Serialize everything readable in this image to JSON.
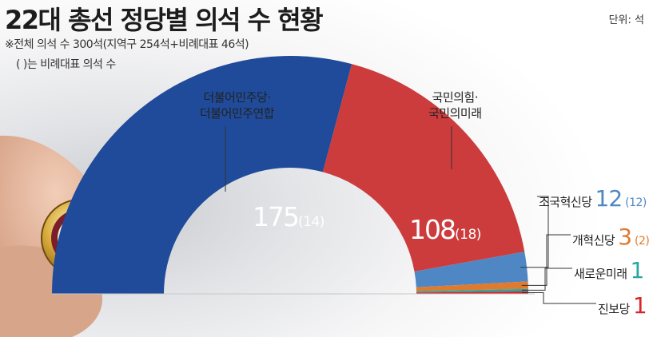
{
  "header": {
    "title": "22대 총선 정당별 의석 수 현황",
    "unit": "단위: 석",
    "note1": "※전체 의석 수 300석(지역구 254석+비례대표 46석)",
    "note2": "( )는 비례대표 의석 수"
  },
  "labels": {
    "dem_line1": "더불어민주당·",
    "dem_line2": "더불어민주연합",
    "ppp_line1": "국민의힘·",
    "ppp_line2": "국민의미래"
  },
  "values": {
    "dem_total": "175",
    "dem_prop": "(14)",
    "ppp_total": "108",
    "ppp_prop": "(18)",
    "cho_name": "조국혁신당",
    "cho_total": "12",
    "cho_prop": "(12)",
    "ref_name": "개혁신당",
    "ref_total": "3",
    "ref_prop": "(2)",
    "new_name": "새로운미래",
    "new_total": "1",
    "prog_name": "진보당",
    "prog_total": "1"
  },
  "colors": {
    "dem": "#1f4b9a",
    "ppp": "#cc3c3c",
    "cho": "#4f87c4",
    "ref": "#e07a2e",
    "new": "#2ba6a0",
    "prog": "#d6262a"
  },
  "chart_data": {
    "type": "pie",
    "categories": [
      "더불어민주당·더불어민주연합",
      "국민의힘·국민의미래",
      "조국혁신당",
      "개혁신당",
      "새로운미래",
      "진보당"
    ],
    "values": [
      175,
      108,
      12,
      3,
      1,
      1
    ],
    "proportional_seats": [
      14,
      18,
      12,
      2,
      null,
      null
    ],
    "total": 300
  }
}
